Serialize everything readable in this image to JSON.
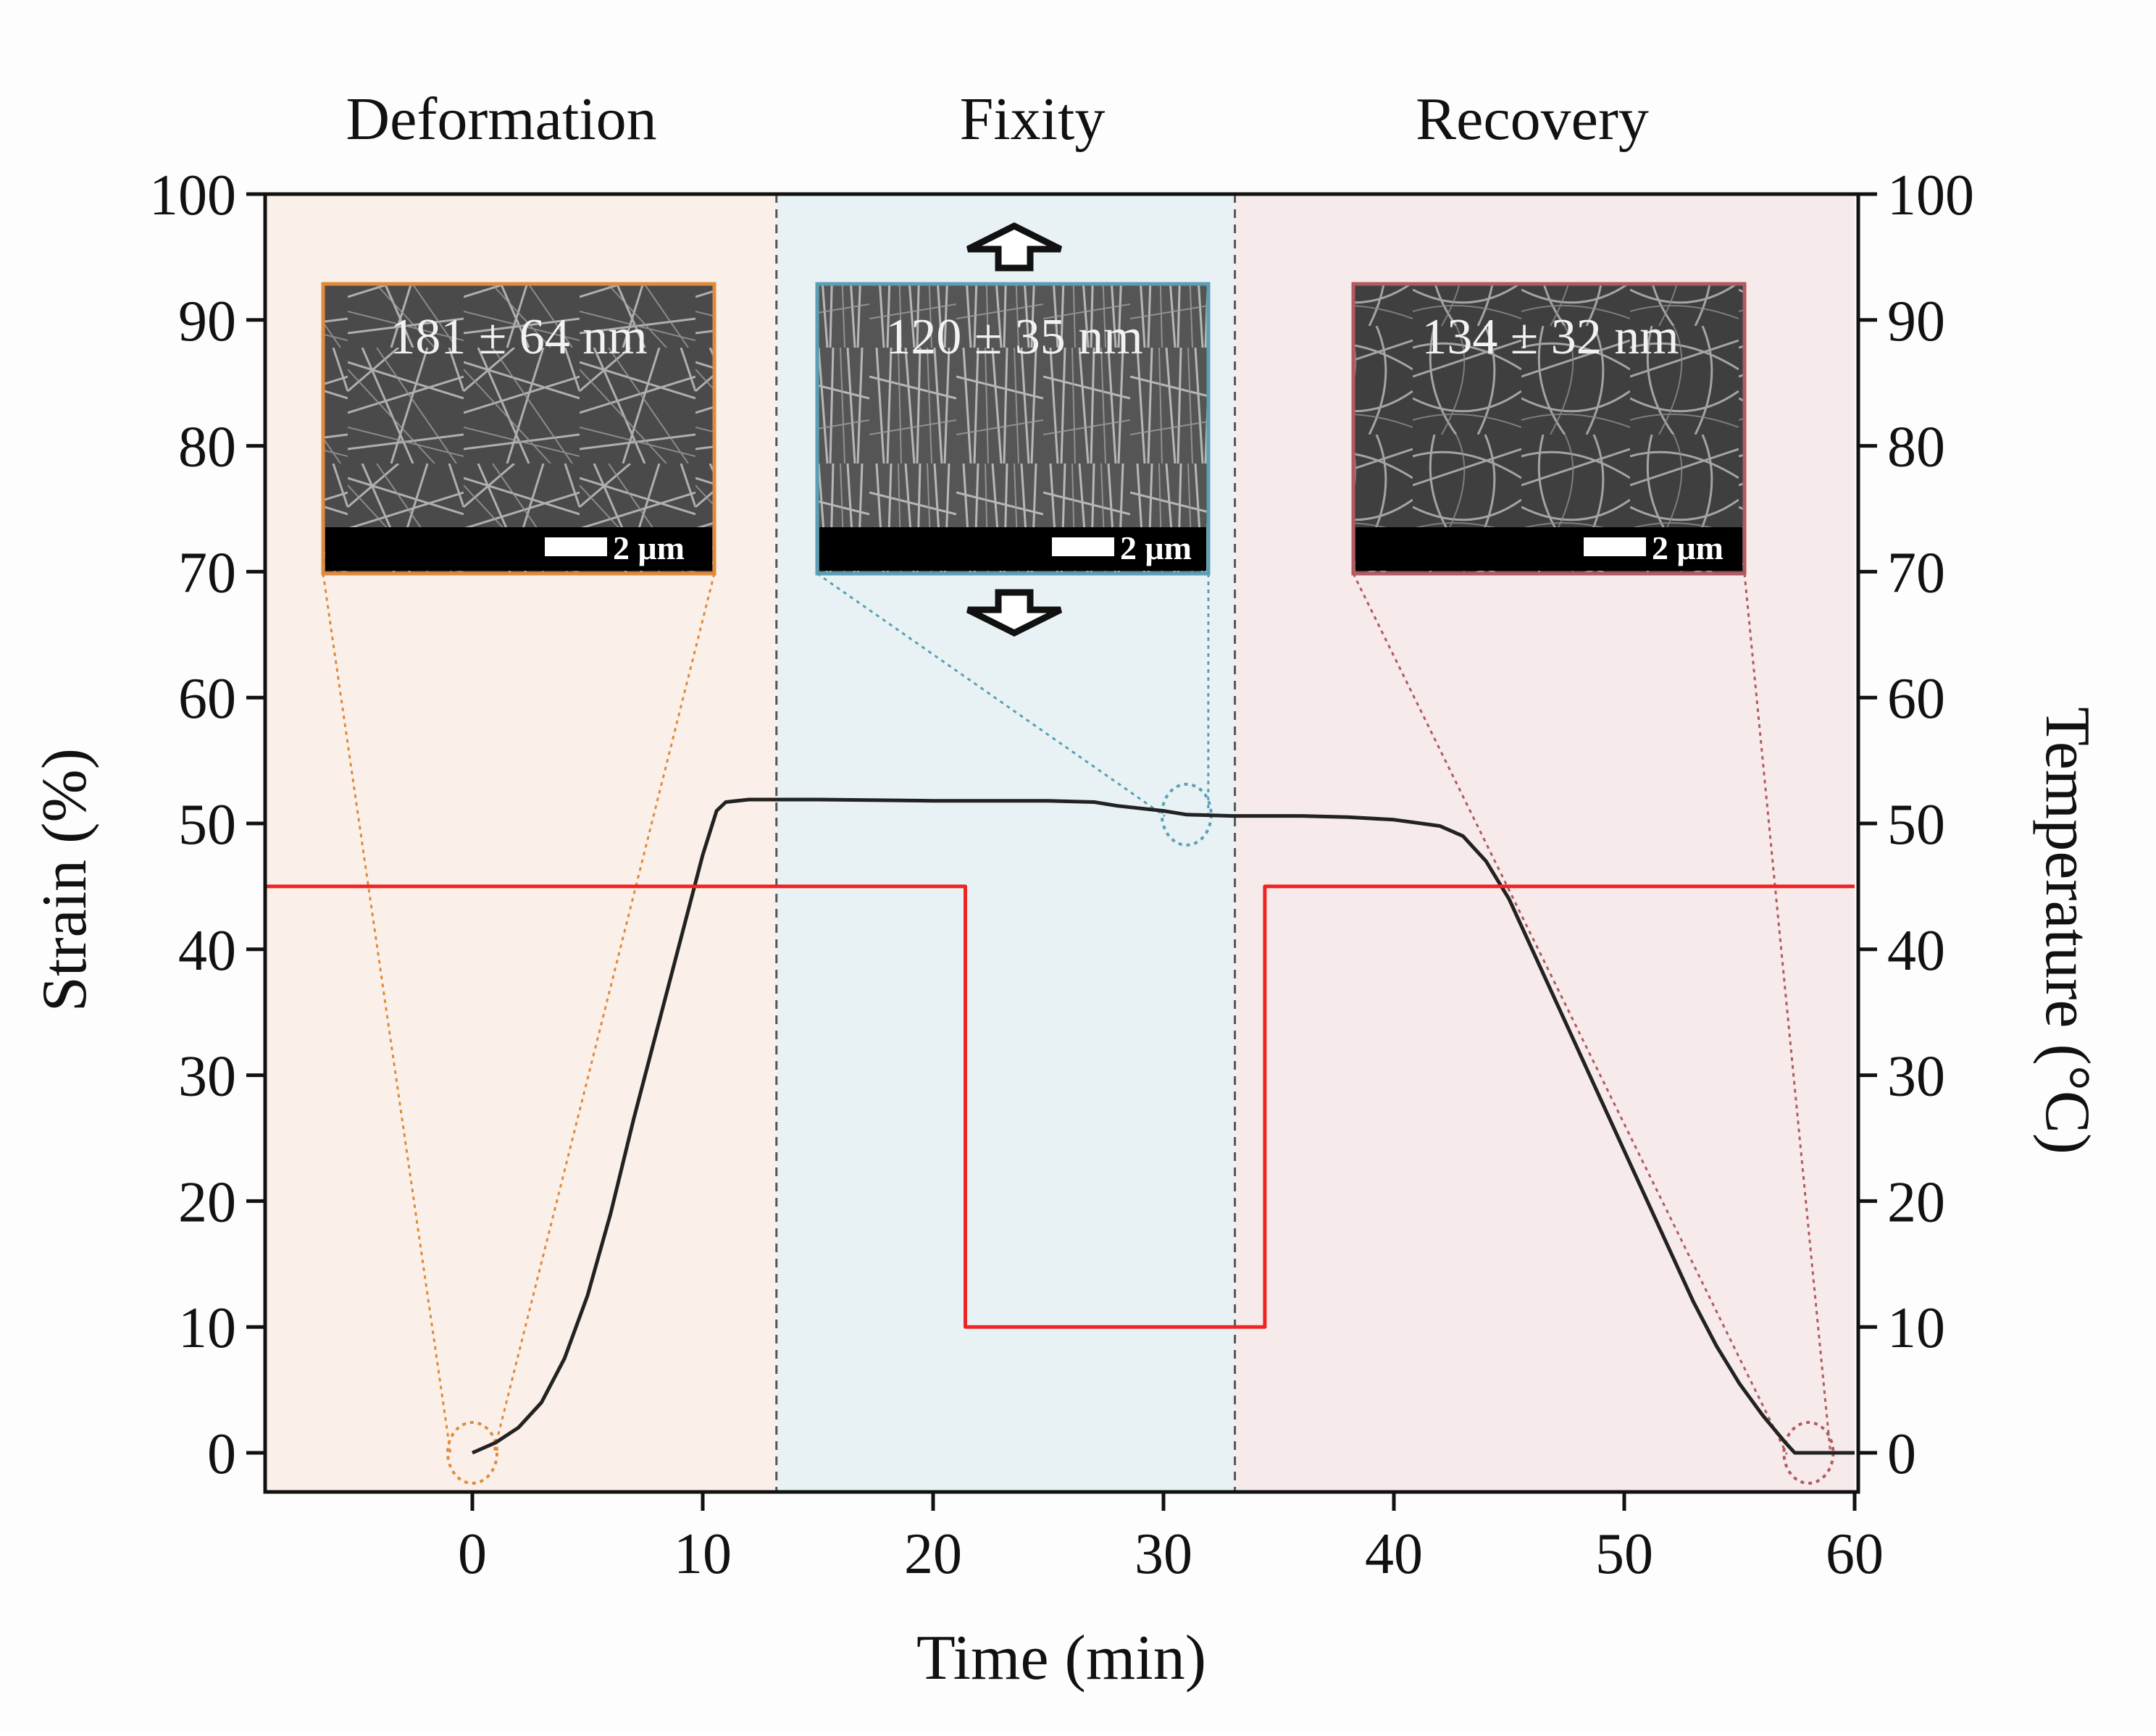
{
  "chart_data": {
    "type": "line",
    "phases": [
      {
        "name": "Deformation",
        "x_start": -9,
        "x_end": 13.2,
        "color": "#fbf0e9"
      },
      {
        "name": "Fixity",
        "x_start": 13.2,
        "x_end": 33.1,
        "color": "#e8f2f5"
      },
      {
        "name": "Recovery",
        "x_start": 33.1,
        "x_end": 60,
        "color": "#f7eaea"
      }
    ],
    "xlabel": "Time (min)",
    "ylabel_left": "Strain (%)",
    "ylabel_right": "Temperature (°C)",
    "xlim": [
      -9,
      60
    ],
    "ylim": [
      0,
      100
    ],
    "x_ticks": [
      0,
      10,
      20,
      30,
      40,
      50,
      60
    ],
    "y_ticks": [
      0,
      10,
      20,
      30,
      40,
      50,
      60,
      70,
      80,
      90,
      100
    ],
    "series": [
      {
        "name": "Strain",
        "axis": "left",
        "color": "#222222",
        "points": [
          [
            0,
            0
          ],
          [
            1,
            0.8
          ],
          [
            2,
            2
          ],
          [
            3,
            4
          ],
          [
            4,
            7.5
          ],
          [
            5,
            12.5
          ],
          [
            6,
            19
          ],
          [
            7,
            26.5
          ],
          [
            8,
            33.5
          ],
          [
            9,
            40.5
          ],
          [
            10,
            47.5
          ],
          [
            10.6,
            51
          ],
          [
            11,
            51.7
          ],
          [
            12,
            51.9
          ],
          [
            13,
            51.9
          ],
          [
            15,
            51.9
          ],
          [
            20,
            51.8
          ],
          [
            25,
            51.8
          ],
          [
            27,
            51.7
          ],
          [
            28,
            51.4
          ],
          [
            30,
            51
          ],
          [
            31,
            50.7
          ],
          [
            33,
            50.6
          ],
          [
            36,
            50.6
          ],
          [
            38,
            50.5
          ],
          [
            40,
            50.3
          ],
          [
            42,
            49.8
          ],
          [
            43,
            49
          ],
          [
            44,
            47
          ],
          [
            45,
            44
          ],
          [
            46,
            40
          ],
          [
            47,
            36
          ],
          [
            48,
            32
          ],
          [
            49,
            28
          ],
          [
            50,
            24
          ],
          [
            51,
            20
          ],
          [
            52,
            16
          ],
          [
            53,
            12
          ],
          [
            54,
            8.5
          ],
          [
            55,
            5.5
          ],
          [
            56,
            3
          ],
          [
            57,
            0.8
          ],
          [
            57.4,
            0
          ],
          [
            60,
            0
          ]
        ]
      },
      {
        "name": "Temperature",
        "axis": "right",
        "color": "#ee2424",
        "points": [
          [
            -9,
            45
          ],
          [
            21.4,
            45
          ],
          [
            21.4,
            10
          ],
          [
            34.4,
            10
          ],
          [
            34.4,
            45
          ],
          [
            60,
            45
          ]
        ]
      }
    ],
    "insets": [
      {
        "label": "181 ± 64 nm",
        "scale": "2 μm",
        "border": "#e08a3c",
        "target": [
          0,
          0
        ]
      },
      {
        "label": "120 ± 35 nm",
        "scale": "2 μm",
        "border": "#5b9fb5",
        "target": [
          31,
          50.7
        ]
      },
      {
        "label": "134 ± 32 nm",
        "scale": "2 μm",
        "border": "#b25a5f",
        "target": [
          58,
          0
        ]
      }
    ],
    "annotations": [
      "stretch-arrow-up",
      "stretch-arrow-down"
    ]
  }
}
